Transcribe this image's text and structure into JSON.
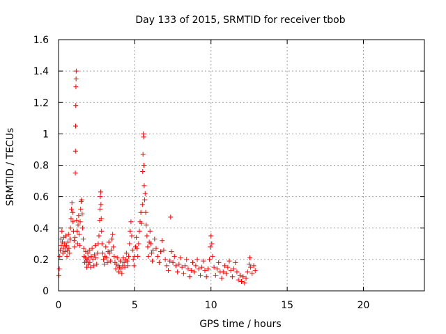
{
  "chart_data": {
    "type": "scatter",
    "title": "Day 133 of 2015, SRMTID for receiver tbob",
    "xlabel": "GPS time / hours",
    "ylabel": "SRMTID / TECUs",
    "xlim": [
      0,
      24
    ],
    "ylim": [
      0,
      1.6
    ],
    "xticks": [
      0,
      5,
      10,
      15,
      20
    ],
    "xtick_labels": [
      "0",
      "5",
      "10",
      "15",
      "20"
    ],
    "yticks": [
      0,
      0.2,
      0.4,
      0.6,
      0.8,
      1.0,
      1.2,
      1.4,
      1.6
    ],
    "ytick_labels": [
      "0",
      "0.2",
      "0.4",
      "0.6",
      "0.8",
      "1",
      "1.2",
      "1.4",
      "1.6"
    ],
    "grid": true,
    "marker": "+",
    "color": "#ff0000",
    "series": [
      {
        "name": "SRMTID",
        "points": [
          [
            0.02,
            0.1
          ],
          [
            0.05,
            0.14
          ],
          [
            0.08,
            0.22
          ],
          [
            0.12,
            0.26
          ],
          [
            0.15,
            0.33
          ],
          [
            0.18,
            0.29
          ],
          [
            0.22,
            0.38
          ],
          [
            0.25,
            0.31
          ],
          [
            0.28,
            0.24
          ],
          [
            0.32,
            0.27
          ],
          [
            0.35,
            0.34
          ],
          [
            0.38,
            0.3
          ],
          [
            0.42,
            0.25
          ],
          [
            0.45,
            0.28
          ],
          [
            0.48,
            0.35
          ],
          [
            0.52,
            0.29
          ],
          [
            0.55,
            0.22
          ],
          [
            0.58,
            0.26
          ],
          [
            0.62,
            0.31
          ],
          [
            0.65,
            0.36
          ],
          [
            0.68,
            0.27
          ],
          [
            0.72,
            0.24
          ],
          [
            0.75,
            0.33
          ],
          [
            0.78,
            0.4
          ],
          [
            0.82,
            0.46
          ],
          [
            0.85,
            0.52
          ],
          [
            0.88,
            0.56
          ],
          [
            0.92,
            0.5
          ],
          [
            0.95,
            0.44
          ],
          [
            0.98,
            0.38
          ],
          [
            1.02,
            0.32
          ],
          [
            1.05,
            0.28
          ],
          [
            1.08,
            0.34
          ],
          [
            1.1,
            0.75
          ],
          [
            1.11,
            0.89
          ],
          [
            1.12,
            1.05
          ],
          [
            1.13,
            1.18
          ],
          [
            1.14,
            1.3
          ],
          [
            1.15,
            1.35
          ],
          [
            1.16,
            1.4
          ],
          [
            1.18,
            0.45
          ],
          [
            1.22,
            0.38
          ],
          [
            1.25,
            0.3
          ],
          [
            1.28,
            0.42
          ],
          [
            1.32,
            0.48
          ],
          [
            1.35,
            0.36
          ],
          [
            1.38,
            0.29
          ],
          [
            1.42,
            0.44
          ],
          [
            1.45,
            0.52
          ],
          [
            1.48,
            0.57
          ],
          [
            1.52,
            0.58
          ],
          [
            1.55,
            0.49
          ],
          [
            1.58,
            0.4
          ],
          [
            1.62,
            0.33
          ],
          [
            1.65,
            0.27
          ],
          [
            1.68,
            0.22
          ],
          [
            1.72,
            0.18
          ],
          [
            1.75,
            0.21
          ],
          [
            1.78,
            0.25
          ],
          [
            1.82,
            0.19
          ],
          [
            1.85,
            0.15
          ],
          [
            1.88,
            0.2
          ],
          [
            1.92,
            0.24
          ],
          [
            1.95,
            0.17
          ],
          [
            1.98,
            0.21
          ],
          [
            2.02,
            0.26
          ],
          [
            2.05,
            0.18
          ],
          [
            2.1,
            0.15
          ],
          [
            2.15,
            0.22
          ],
          [
            2.2,
            0.27
          ],
          [
            2.25,
            0.2
          ],
          [
            2.3,
            0.16
          ],
          [
            2.35,
            0.23
          ],
          [
            2.4,
            0.29
          ],
          [
            2.45,
            0.21
          ],
          [
            2.5,
            0.17
          ],
          [
            2.55,
            0.24
          ],
          [
            2.6,
            0.3
          ],
          [
            2.65,
            0.35
          ],
          [
            2.7,
            0.45
          ],
          [
            2.72,
            0.52
          ],
          [
            2.74,
            0.6
          ],
          [
            2.76,
            0.63
          ],
          [
            2.78,
            0.55
          ],
          [
            2.8,
            0.46
          ],
          [
            2.82,
            0.38
          ],
          [
            2.85,
            0.3
          ],
          [
            2.9,
            0.24
          ],
          [
            2.95,
            0.2
          ],
          [
            3.0,
            0.17
          ],
          [
            3.05,
            0.22
          ],
          [
            3.1,
            0.28
          ],
          [
            3.15,
            0.21
          ],
          [
            3.2,
            0.18
          ],
          [
            3.25,
            0.25
          ],
          [
            3.3,
            0.31
          ],
          [
            3.35,
            0.24
          ],
          [
            3.4,
            0.19
          ],
          [
            3.45,
            0.26
          ],
          [
            3.5,
            0.33
          ],
          [
            3.55,
            0.36
          ],
          [
            3.6,
            0.28
          ],
          [
            3.65,
            0.22
          ],
          [
            3.7,
            0.18
          ],
          [
            3.75,
            0.14
          ],
          [
            3.8,
            0.17
          ],
          [
            3.85,
            0.21
          ],
          [
            3.9,
            0.16
          ],
          [
            3.95,
            0.12
          ],
          [
            4.0,
            0.15
          ],
          [
            4.05,
            0.19
          ],
          [
            4.1,
            0.14
          ],
          [
            4.15,
            0.11
          ],
          [
            4.2,
            0.16
          ],
          [
            4.25,
            0.21
          ],
          [
            4.3,
            0.18
          ],
          [
            4.35,
            0.15
          ],
          [
            4.4,
            0.2
          ],
          [
            4.45,
            0.24
          ],
          [
            4.5,
            0.19
          ],
          [
            4.55,
            0.16
          ],
          [
            4.6,
            0.22
          ],
          [
            4.65,
            0.3
          ],
          [
            4.7,
            0.38
          ],
          [
            4.75,
            0.44
          ],
          [
            4.8,
            0.35
          ],
          [
            4.85,
            0.26
          ],
          [
            4.9,
            0.2
          ],
          [
            4.95,
            0.16
          ],
          [
            5.0,
            0.22
          ],
          [
            5.05,
            0.28
          ],
          [
            5.1,
            0.34
          ],
          [
            5.15,
            0.27
          ],
          [
            5.2,
            0.22
          ],
          [
            5.25,
            0.3
          ],
          [
            5.3,
            0.38
          ],
          [
            5.35,
            0.44
          ],
          [
            5.4,
            0.5
          ],
          [
            5.45,
            0.43
          ],
          [
            5.5,
            0.55
          ],
          [
            5.52,
            0.76
          ],
          [
            5.54,
            0.87
          ],
          [
            5.56,
            1.0
          ],
          [
            5.58,
            0.98
          ],
          [
            5.6,
            0.8
          ],
          [
            5.62,
            0.67
          ],
          [
            5.65,
            0.58
          ],
          [
            5.68,
            0.62
          ],
          [
            5.72,
            0.5
          ],
          [
            5.75,
            0.42
          ],
          [
            5.8,
            0.35
          ],
          [
            5.85,
            0.28
          ],
          [
            5.9,
            0.22
          ],
          [
            5.95,
            0.31
          ],
          [
            6.0,
            0.38
          ],
          [
            6.05,
            0.3
          ],
          [
            6.1,
            0.24
          ],
          [
            6.15,
            0.19
          ],
          [
            6.2,
            0.26
          ],
          [
            6.3,
            0.33
          ],
          [
            6.4,
            0.27
          ],
          [
            6.5,
            0.22
          ],
          [
            6.6,
            0.18
          ],
          [
            6.7,
            0.25
          ],
          [
            6.8,
            0.32
          ],
          [
            6.9,
            0.26
          ],
          [
            7.0,
            0.2
          ],
          [
            7.1,
            0.16
          ],
          [
            7.2,
            0.13
          ],
          [
            7.3,
            0.19
          ],
          [
            7.35,
            0.47
          ],
          [
            7.4,
            0.25
          ],
          [
            7.5,
            0.18
          ],
          [
            7.6,
            0.22
          ],
          [
            7.7,
            0.16
          ],
          [
            7.8,
            0.12
          ],
          [
            7.9,
            0.17
          ],
          [
            8.0,
            0.21
          ],
          [
            8.1,
            0.15
          ],
          [
            8.2,
            0.11
          ],
          [
            8.3,
            0.16
          ],
          [
            8.4,
            0.2
          ],
          [
            8.5,
            0.14
          ],
          [
            8.6,
            0.09
          ],
          [
            8.7,
            0.13
          ],
          [
            8.8,
            0.18
          ],
          [
            8.9,
            0.12
          ],
          [
            9.0,
            0.16
          ],
          [
            9.1,
            0.2
          ],
          [
            9.2,
            0.14
          ],
          [
            9.3,
            0.1
          ],
          [
            9.4,
            0.15
          ],
          [
            9.5,
            0.19
          ],
          [
            9.6,
            0.13
          ],
          [
            9.7,
            0.09
          ],
          [
            9.8,
            0.14
          ],
          [
            9.9,
            0.2
          ],
          [
            9.95,
            0.28
          ],
          [
            10.0,
            0.35
          ],
          [
            10.05,
            0.3
          ],
          [
            10.1,
            0.22
          ],
          [
            10.2,
            0.15
          ],
          [
            10.3,
            0.1
          ],
          [
            10.4,
            0.14
          ],
          [
            10.5,
            0.18
          ],
          [
            10.6,
            0.12
          ],
          [
            10.7,
            0.08
          ],
          [
            10.8,
            0.12
          ],
          [
            10.9,
            0.16
          ],
          [
            11.0,
            0.11
          ],
          [
            11.1,
            0.15
          ],
          [
            11.2,
            0.19
          ],
          [
            11.3,
            0.13
          ],
          [
            11.4,
            0.09
          ],
          [
            11.5,
            0.14
          ],
          [
            11.6,
            0.18
          ],
          [
            11.7,
            0.12
          ],
          [
            11.8,
            0.07
          ],
          [
            11.9,
            0.1
          ],
          [
            12.0,
            0.06
          ],
          [
            12.1,
            0.09
          ],
          [
            12.2,
            0.05
          ],
          [
            12.3,
            0.08
          ],
          [
            12.4,
            0.12
          ],
          [
            12.5,
            0.17
          ],
          [
            12.55,
            0.21
          ],
          [
            12.6,
            0.15
          ],
          [
            12.7,
            0.11
          ],
          [
            12.8,
            0.16
          ],
          [
            12.9,
            0.13
          ]
        ]
      }
    ]
  }
}
